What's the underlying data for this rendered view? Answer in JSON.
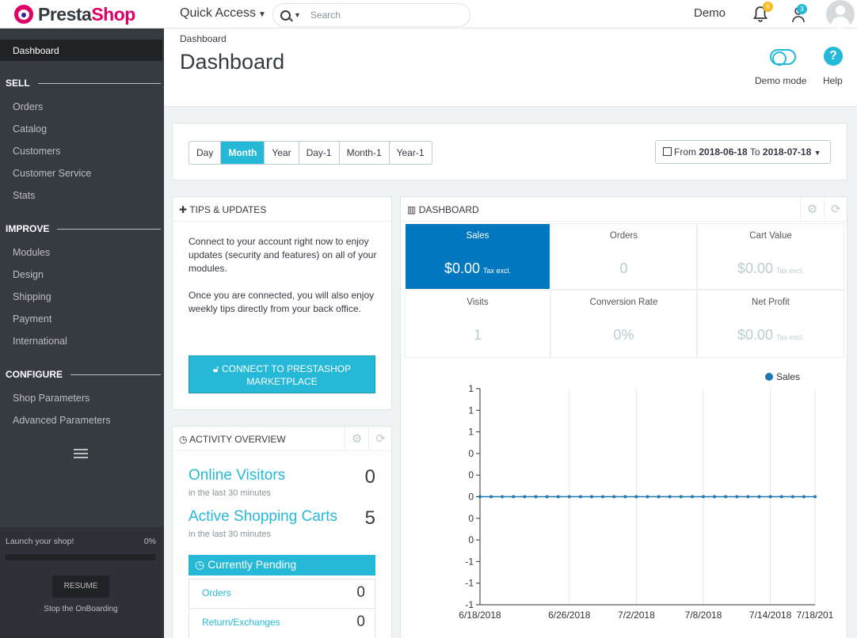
{
  "header": {
    "brand_first": "Presta",
    "brand_second": "Shop",
    "quick_access": "Quick Access",
    "search_placeholder": "Search",
    "user_name": "Demo",
    "notifications_count": "6",
    "employee_count": "3"
  },
  "page": {
    "breadcrumb": "Dashboard",
    "title": "Dashboard",
    "demo_mode_label": "Demo mode",
    "help_label": "Help"
  },
  "sidebar": {
    "active": "Dashboard",
    "sections": [
      {
        "title": "SELL",
        "items": [
          "Orders",
          "Catalog",
          "Customers",
          "Customer Service",
          "Stats"
        ]
      },
      {
        "title": "IMPROVE",
        "items": [
          "Modules",
          "Design",
          "Shipping",
          "Payment",
          "International"
        ]
      },
      {
        "title": "CONFIGURE",
        "items": [
          "Shop Parameters",
          "Advanced Parameters"
        ]
      }
    ],
    "onboarding": {
      "text": "Launch your shop!",
      "percent": "0%",
      "progress": 0,
      "resume": "RESUME",
      "stop": "Stop the OnBoarding"
    }
  },
  "filters": {
    "periods": [
      "Day",
      "Month",
      "Year",
      "Day-1",
      "Month-1",
      "Year-1"
    ],
    "selected": "Month",
    "date": {
      "from_label": "From",
      "from": "2018-06-18",
      "to_label": "To",
      "to": "2018-07-18"
    }
  },
  "tips": {
    "title": "TIPS & UPDATES",
    "text1": "Connect to your account right now to enjoy updates (security and features) on all of your modules.",
    "text2": "Once you are connected, you will also enjoy weekly tips directly from your back office.",
    "button": "CONNECT TO PRESTASHOP MARKETPLACE"
  },
  "activity": {
    "title": "ACTIVITY OVERVIEW",
    "online_title": "Online Visitors",
    "online_sub": "in the last 30 minutes",
    "online_value": "0",
    "carts_title": "Active Shopping Carts",
    "carts_sub": "in the last 30 minutes",
    "carts_value": "5",
    "pending_title": "Currently Pending",
    "pending": [
      {
        "label": "Orders",
        "value": "0"
      },
      {
        "label": "Return/Exchanges",
        "value": "0"
      }
    ]
  },
  "dashboard": {
    "title": "DASHBOARD",
    "kpis": [
      {
        "label": "Sales",
        "value": "$0.00",
        "suffix": "Tax excl."
      },
      {
        "label": "Orders",
        "value": "0",
        "suffix": ""
      },
      {
        "label": "Cart Value",
        "value": "$0.00",
        "suffix": "Tax excl."
      },
      {
        "label": "Visits",
        "value": "1",
        "suffix": ""
      },
      {
        "label": "Conversion Rate",
        "value": "0%",
        "suffix": ""
      },
      {
        "label": "Net Profit",
        "value": "$0.00",
        "suffix": "Tax excl."
      }
    ]
  },
  "colors": {
    "accent": "#25b9d7",
    "sidebar": "#363a41",
    "selected_kpi": "#0077be",
    "series": "#1f77b4"
  },
  "chart_data": {
    "type": "line",
    "legend": "Sales",
    "legend_position": "top-right",
    "y_tick_labels": [
      "1",
      "1",
      "1",
      "0",
      "0",
      "0",
      "0",
      "0",
      "-1",
      "-1",
      "-1"
    ],
    "x_tick_labels": [
      "6/18/2018",
      "6/26/2018",
      "7/2/2018",
      "7/8/2018",
      "7/14/2018",
      "7/18/201"
    ],
    "series": [
      {
        "name": "Sales",
        "values": [
          0,
          0,
          0,
          0,
          0,
          0,
          0,
          0,
          0,
          0,
          0,
          0,
          0,
          0,
          0,
          0,
          0,
          0,
          0,
          0,
          0,
          0,
          0,
          0,
          0,
          0,
          0,
          0,
          0,
          0,
          0
        ]
      }
    ],
    "x": [
      "2018-06-18",
      "2018-06-19",
      "2018-06-20",
      "2018-06-21",
      "2018-06-22",
      "2018-06-23",
      "2018-06-24",
      "2018-06-25",
      "2018-06-26",
      "2018-06-27",
      "2018-06-28",
      "2018-06-29",
      "2018-06-30",
      "2018-07-01",
      "2018-07-02",
      "2018-07-03",
      "2018-07-04",
      "2018-07-05",
      "2018-07-06",
      "2018-07-07",
      "2018-07-08",
      "2018-07-09",
      "2018-07-10",
      "2018-07-11",
      "2018-07-12",
      "2018-07-13",
      "2018-07-14",
      "2018-07-15",
      "2018-07-16",
      "2018-07-17",
      "2018-07-18"
    ],
    "grid": true
  }
}
